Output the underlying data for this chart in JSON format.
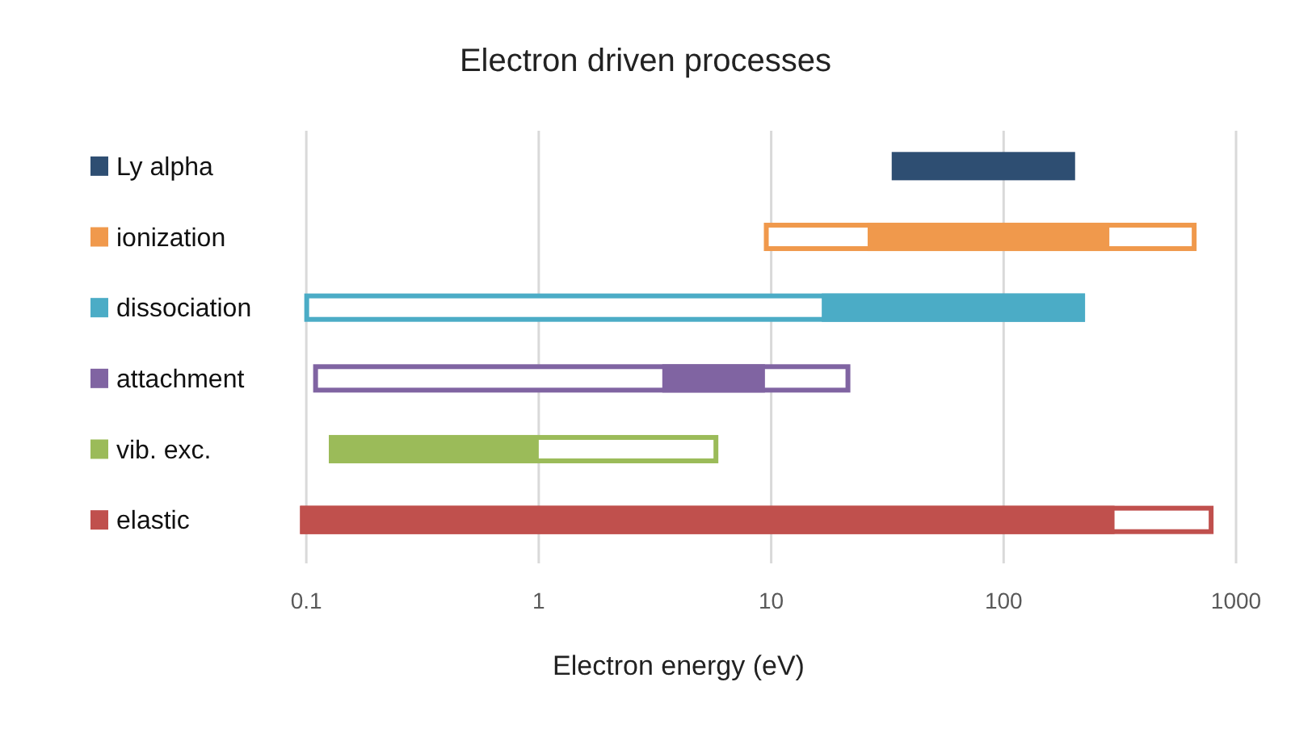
{
  "chart_data": {
    "type": "bar",
    "orientation": "horizontal",
    "title": "Electron driven processes",
    "xlabel": "Electron energy (eV)",
    "log": "x",
    "grid": "x",
    "categories": [
      "Ly alpha",
      "ionization",
      "dissociation",
      "attachment",
      "vib. exc.",
      "elastic"
    ],
    "xlim": [
      0.09,
      1000
    ],
    "xticks": [
      0.1,
      1,
      10,
      100,
      1000
    ],
    "series": [
      {
        "colors": [
          "#2e4e72",
          "#f0994c",
          "#4bacc6",
          "#8064a2",
          "#9bbb59",
          "#c0504d"
        ],
        "base": [
          null,
          9.3,
          0.098,
          0.107,
          0.125,
          0.094
        ],
        "values": [
          null,
          667,
          223.9,
          21.8,
          5.8,
          799.9
        ]
      },
      {
        "colors": [
          "#2e4e72",
          "#f0994c",
          "#4bacc6",
          "#8064a2",
          "#9bbb59",
          "#c0504d"
        ],
        "base": [
          33,
          26,
          16.5,
          3.4,
          0.125,
          0.094
        ],
        "values": [
          170,
          259,
          207.5,
          6.0,
          0.875,
          299.9
        ]
      }
    ]
  }
}
